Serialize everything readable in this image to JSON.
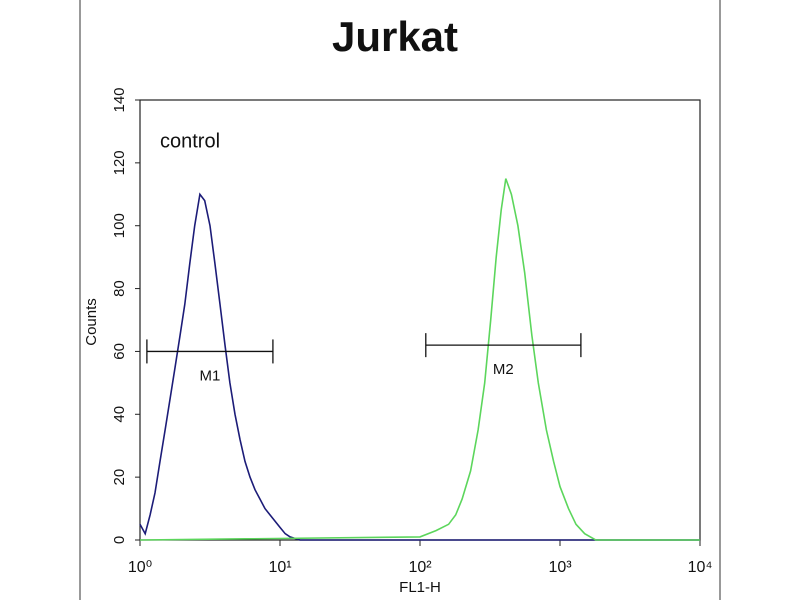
{
  "chart_data": {
    "type": "line",
    "title": "Jurkat",
    "xlabel": "FL1-H",
    "ylabel": "Counts",
    "xscale": "log",
    "xlim": [
      1,
      10000
    ],
    "xticks": [
      {
        "value": 1,
        "label": "10⁰"
      },
      {
        "value": 10,
        "label": "10¹"
      },
      {
        "value": 100,
        "label": "10²"
      },
      {
        "value": 1000,
        "label": "10³"
      },
      {
        "value": 10000,
        "label": "10⁴"
      }
    ],
    "ylim": [
      0,
      140
    ],
    "yticks": [
      0,
      20,
      40,
      60,
      80,
      100,
      120,
      140
    ],
    "series": [
      {
        "name": "control",
        "color": "#1c1c78",
        "x": [
          1,
          1.09,
          1.18,
          1.28,
          1.39,
          1.51,
          1.64,
          1.78,
          1.93,
          2.09,
          2.27,
          2.46,
          2.68,
          2.9,
          3.16,
          3.43,
          3.73,
          4.05,
          4.39,
          4.77,
          5.18,
          5.62,
          6.11,
          6.63,
          7.2,
          7.82,
          8.48,
          9.21,
          10,
          10.9,
          11.8,
          13.9,
          10000
        ],
        "y": [
          5,
          2,
          8,
          15,
          25,
          35,
          45,
          55,
          65,
          75,
          88,
          100,
          110,
          108,
          100,
          88,
          75,
          62,
          50,
          40,
          32,
          25,
          20,
          16,
          13,
          10,
          8,
          6,
          4,
          2,
          1,
          0,
          0
        ]
      },
      {
        "color": "#5cd65c",
        "x": [
          1,
          100,
          130,
          160,
          180,
          200,
          230,
          260,
          290,
          320,
          350,
          380,
          410,
          450,
          500,
          560,
          630,
          700,
          800,
          900,
          1000,
          1150,
          1300,
          1500,
          1800,
          10000
        ],
        "y": [
          0,
          1,
          3,
          5,
          8,
          13,
          22,
          35,
          50,
          70,
          90,
          105,
          115,
          110,
          100,
          85,
          65,
          50,
          35,
          25,
          17,
          10,
          5,
          2,
          0,
          0
        ]
      }
    ],
    "markers": [
      {
        "label": "M1",
        "x": [
          1.12,
          8.9
        ],
        "y": 60
      },
      {
        "label": "M2",
        "x": [
          110,
          1410
        ],
        "y": 62
      }
    ]
  }
}
